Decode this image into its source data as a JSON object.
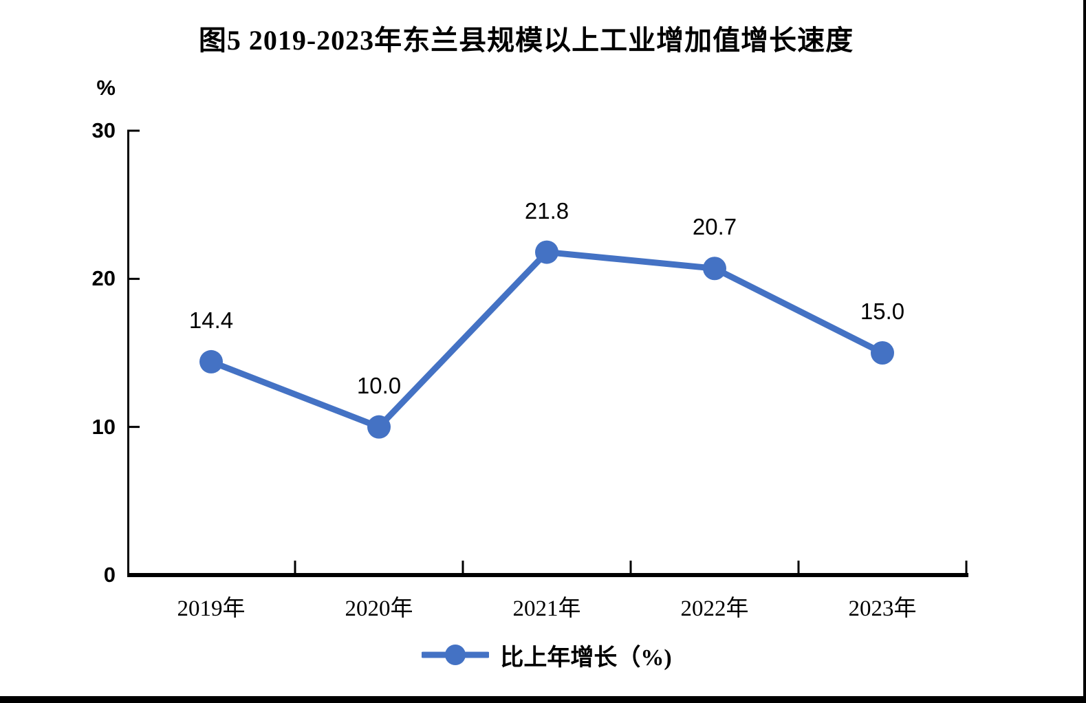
{
  "title": "图5  2019-2023年东兰县规模以上工业增加值增长速度",
  "y_axis": {
    "unit": "%"
  },
  "legend": {
    "label": "比上年增长（%)"
  },
  "colors": {
    "series": "#4472C4",
    "axis": "#000000",
    "text": "#000000"
  },
  "chart_data": {
    "type": "line",
    "title": "图5  2019-2023年东兰县规模以上工业增加值增长速度",
    "categories": [
      "2019年",
      "2020年",
      "2021年",
      "2022年",
      "2023年"
    ],
    "series": [
      {
        "name": "比上年增长（%)",
        "values": [
          14.4,
          10.0,
          21.8,
          20.7,
          15.0
        ],
        "color": "#4472C4",
        "marker": "circle"
      }
    ],
    "data_labels": [
      "14.4",
      "10.0",
      "21.8",
      "20.7",
      "15.0"
    ],
    "xlabel": "",
    "ylabel": "%",
    "ylim": [
      0,
      30
    ],
    "yticks": [
      0,
      10,
      20,
      30
    ],
    "grid": false,
    "legend_position": "bottom"
  }
}
